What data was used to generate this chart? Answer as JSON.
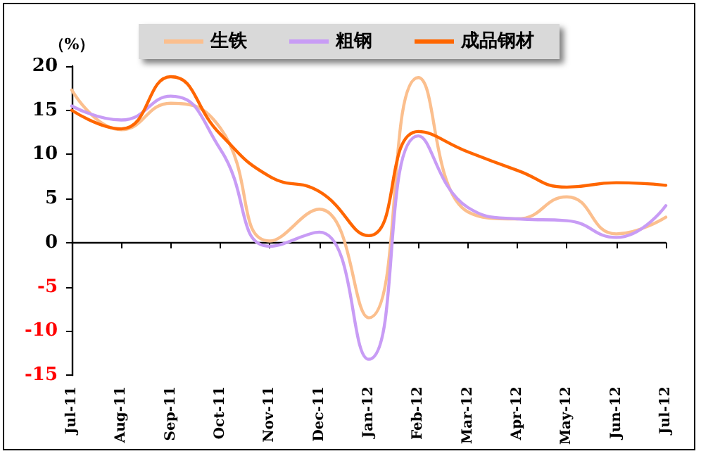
{
  "chart_data": {
    "type": "line",
    "ylabel": "（%）",
    "categories": [
      "Jul-11",
      "Aug-11",
      "Sep-11",
      "Oct-11",
      "Nov-11",
      "Dec-11",
      "Jan-12",
      "Feb-12",
      "Mar-12",
      "Apr-12",
      "May-12",
      "Jun-12",
      "Jul-12"
    ],
    "series": [
      {
        "name": "生铁",
        "color": "#fbbf8e",
        "values": [
          17.3,
          12.8,
          15.8,
          13,
          0.2,
          3.8,
          -8.5,
          18.7,
          3.5,
          2.7,
          5.2,
          1.0,
          2.9
        ]
      },
      {
        "name": "粗钢",
        "color": "#c89cf5",
        "values": [
          15.5,
          13.9,
          16.6,
          10.6,
          -0.4,
          1.2,
          -13.2,
          12.1,
          4.0,
          2.7,
          2.5,
          0.6,
          4.2
        ]
      },
      {
        "name": "成品钢材",
        "color": "#ff6600",
        "values": [
          15.0,
          12.9,
          18.8,
          12.3,
          7.5,
          5.8,
          0.8,
          12.6,
          10.3,
          8.2,
          6.3,
          6.8,
          6.5
        ]
      }
    ],
    "ylim": [
      -15,
      20
    ],
    "yticks": [
      -15,
      -10,
      -5,
      0,
      5,
      10,
      15,
      20
    ],
    "legend": "top",
    "marker": "none",
    "line_style": "solid"
  }
}
